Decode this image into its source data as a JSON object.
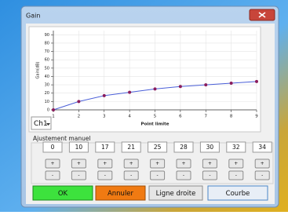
{
  "window": {
    "title": "Gain"
  },
  "chart_data": {
    "type": "line",
    "xlabel": "Point limite",
    "ylabel": "Gain(dB)",
    "x": [
      1,
      2,
      3,
      4,
      5,
      6,
      7,
      8,
      9
    ],
    "series": [
      {
        "color": "#4a5fd8",
        "marker_color": "#8a1c5c",
        "values": [
          0,
          10,
          17,
          21,
          25,
          28,
          30,
          32,
          34
        ]
      }
    ],
    "xlim": [
      1,
      9
    ],
    "ylim": [
      0,
      95
    ],
    "xticks": [
      1,
      2,
      3,
      4,
      5,
      6,
      7,
      8,
      9
    ],
    "yticks": [
      0,
      10,
      20,
      30,
      40,
      50,
      60,
      70,
      80,
      90
    ],
    "grid": true
  },
  "controls": {
    "channel": "Ch1",
    "manual_title": "Ajustement manuel",
    "plus": "+",
    "minus": "-",
    "buttons": [
      "OK",
      "Annuler",
      "Ligne droite",
      "Courbe"
    ]
  }
}
